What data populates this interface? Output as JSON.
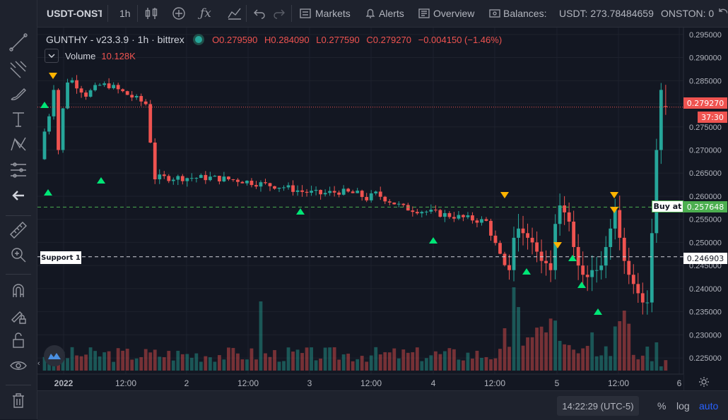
{
  "toolbar": {
    "symbol": "USDT-ONSTO",
    "interval": "1h",
    "markets_label": "Markets",
    "alerts_label": "Alerts",
    "overview_label": "Overview",
    "balances_label": "Balances:",
    "usdt_balance": "USDT: 273.78484659",
    "onston_balance": "ONSTON: 0"
  },
  "legend": {
    "title": "GUNTHY - v23.3.9 · 1h · bittrex",
    "open": "O0.279590",
    "high": "H0.284090",
    "low": "L0.277590",
    "close": "C0.279270",
    "change": "−0.004150 (−1.46%)",
    "volume_label": "Volume",
    "volume_value": "10.128K"
  },
  "chart_data": {
    "type": "candlestick",
    "y_range": [
      0.2215,
      0.2965
    ],
    "y_ticks": [
      "0.295000",
      "0.290000",
      "0.285000",
      "0.280000",
      "0.275000",
      "0.270000",
      "0.265000",
      "0.260000",
      "0.255000",
      "0.250000",
      "0.245000",
      "0.240000",
      "0.235000",
      "0.230000",
      "0.225000"
    ],
    "x_ticks": [
      "2022",
      "12:00",
      "2",
      "12:00",
      "3",
      "12:00",
      "4",
      "12:00",
      "5",
      "12:00",
      "6"
    ],
    "last_price": "0.279270",
    "countdown": "37:30",
    "buy_line": {
      "label": "Buy at",
      "value": "0.257648"
    },
    "support_line": {
      "label": "Support 1",
      "value": "0.246903"
    },
    "series": [
      {
        "name": "price",
        "up_color": "#26a69a",
        "down_color": "#ef5350"
      }
    ]
  },
  "colors": {
    "up": "#26a69a",
    "down": "#ef5350",
    "buy": "#4caf50",
    "sell": "#ffb300",
    "background": "#131722"
  },
  "bottom": {
    "time": "14:22:29 (UTC-5)",
    "percent": "%",
    "log": "log",
    "auto": "auto"
  }
}
